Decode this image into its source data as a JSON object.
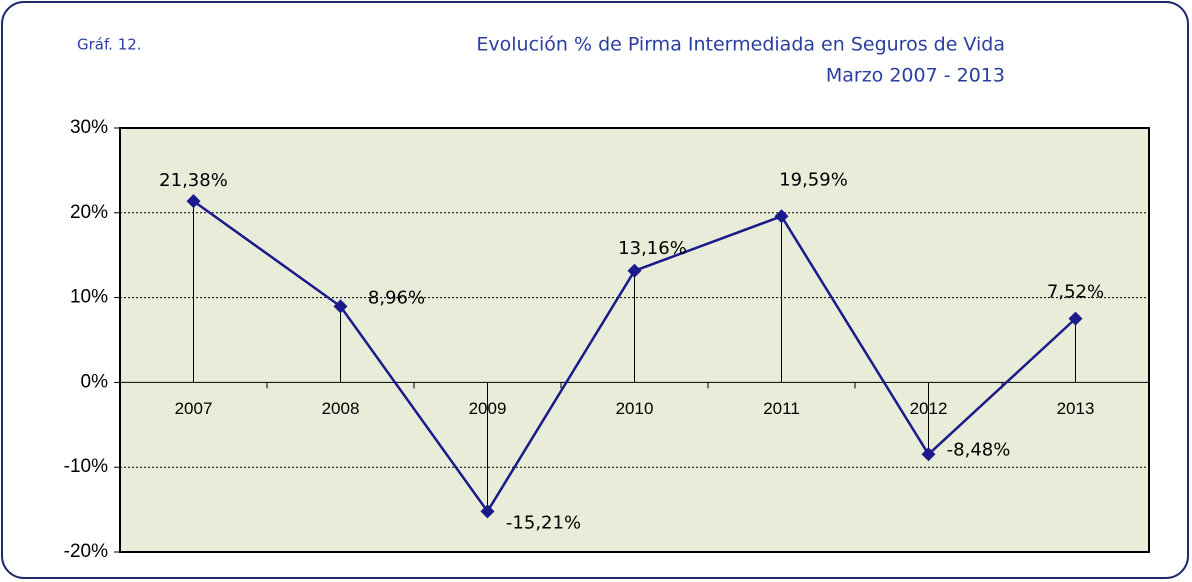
{
  "chart_data": {
    "type": "line",
    "figure_label": "Gráf. 12.",
    "title": "Evolución % de Pirma Intermediada en Seguros de Vida",
    "subtitle": "Marzo 2007 - 2013",
    "categories": [
      "2007",
      "2008",
      "2009",
      "2010",
      "2011",
      "2012",
      "2013"
    ],
    "series": [
      {
        "color": "#1a1a8c",
        "values": [
          21.38,
          8.96,
          -15.21,
          13.16,
          19.59,
          -8.48,
          7.52
        ],
        "value_labels": [
          "21,38%",
          "8,96%",
          "-15,21%",
          "13,16%",
          "19,59%",
          "-8,48%",
          "7,52%"
        ]
      }
    ],
    "ylim": [
      -20,
      30
    ],
    "yticks": [
      {
        "value": -20,
        "label": "-20%"
      },
      {
        "value": -10,
        "label": "-10%"
      },
      {
        "value": 0,
        "label": "0%"
      },
      {
        "value": 10,
        "label": "10%"
      },
      {
        "value": 20,
        "label": "20%"
      },
      {
        "value": 30,
        "label": "30%"
      }
    ],
    "grid": true,
    "drop_lines": true,
    "plot_background": "#e9ecd9"
  }
}
